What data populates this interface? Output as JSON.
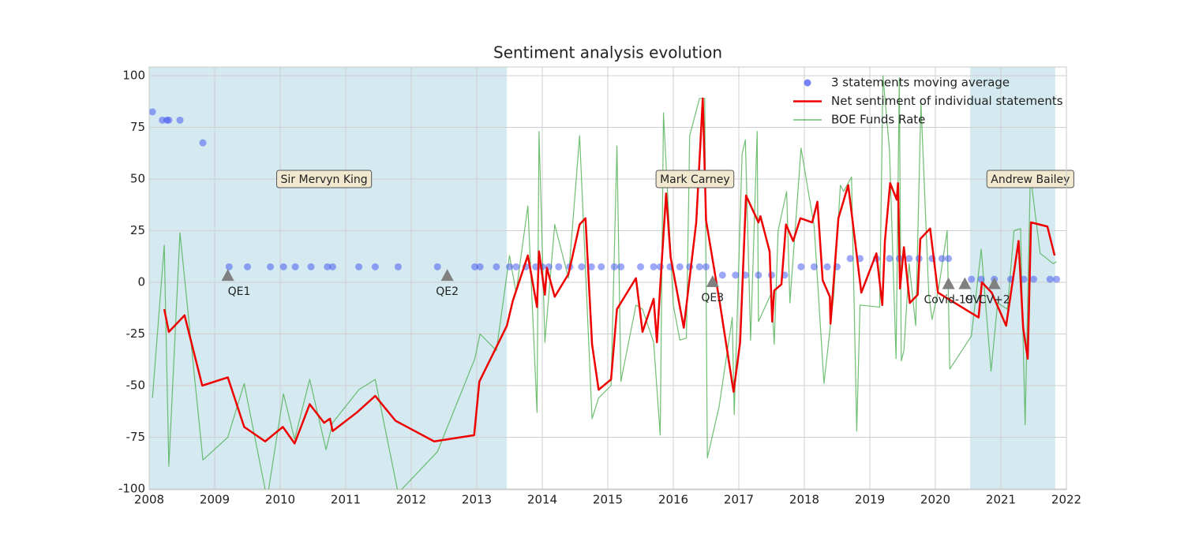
{
  "chart_data": {
    "type": "line",
    "title": "Sentiment analysis evolution",
    "xlim": [
      2008,
      2022
    ],
    "xticks": [
      2008,
      2009,
      2010,
      2011,
      2012,
      2013,
      2014,
      2015,
      2016,
      2017,
      2018,
      2019,
      2020,
      2021,
      2022
    ],
    "ylim": [
      -100,
      100
    ],
    "yticks": [
      -100,
      -75,
      -50,
      -25,
      0,
      25,
      50,
      75,
      100
    ],
    "grid": true,
    "legend": "upper right",
    "spans": [
      {
        "x": [
          2008,
          2013.46
        ],
        "color": "#d4eaf0"
      },
      {
        "x": [
          2020.53,
          2021.83
        ],
        "color": "#d4eaf0"
      }
    ],
    "annotations": [
      {
        "text": "Sir Mervyn King",
        "x": 2010.67,
        "y": 50
      },
      {
        "text": "Mark Carney",
        "x": 2016.33,
        "y": 50
      },
      {
        "text": "Andrew Bailey",
        "x": 2021.45,
        "y": 50
      }
    ],
    "events": {
      "color": "#808080",
      "labels": [
        "QE1",
        "QE2",
        "QE3",
        "Covid-19",
        "CV",
        "CV+2"
      ],
      "x": [
        2009.2,
        2012.55,
        2016.6,
        2020.2,
        2020.45,
        2020.9
      ],
      "values": [
        3,
        3,
        0,
        -1,
        -1,
        -1
      ]
    },
    "series": [
      {
        "name": "3 statements moving average",
        "type": "scatter",
        "color": "#3b50f0",
        "x": [
          2008.05,
          2008.2,
          2008.27,
          2008.3,
          2008.47,
          2008.82,
          2009.22,
          2009.5,
          2009.85,
          2010.05,
          2010.23,
          2010.47,
          2010.72,
          2010.8,
          2011.2,
          2011.45,
          2011.8,
          2012.4,
          2012.97,
          2013.05,
          2013.3,
          2013.5,
          2013.6,
          2013.75,
          2013.9,
          2014.0,
          2014.1,
          2014.25,
          2014.42,
          2014.6,
          2014.75,
          2014.9,
          2015.1,
          2015.2,
          2015.5,
          2015.7,
          2015.8,
          2015.95,
          2016.1,
          2016.25,
          2016.4,
          2016.5,
          2016.75,
          2016.95,
          2017.1,
          2017.3,
          2017.5,
          2017.7,
          2017.95,
          2018.15,
          2018.35,
          2018.5,
          2018.7,
          2018.85,
          2019.1,
          2019.3,
          2019.45,
          2019.6,
          2019.75,
          2019.95,
          2020.1,
          2020.2,
          2020.55,
          2020.7,
          2020.9,
          2021.15,
          2021.35,
          2021.5,
          2021.75,
          2021.85
        ],
        "values": [
          82.5,
          78.5,
          78.5,
          78.5,
          78.5,
          67.5,
          7.5,
          7.5,
          7.5,
          7.5,
          7.5,
          7.5,
          7.5,
          7.5,
          7.5,
          7.5,
          7.5,
          7.5,
          7.5,
          7.5,
          7.5,
          7.5,
          7.5,
          7.5,
          7.5,
          7.5,
          7.5,
          7.5,
          7.5,
          7.5,
          7.5,
          7.5,
          7.5,
          7.5,
          7.5,
          7.5,
          7.5,
          7.5,
          7.5,
          7.5,
          7.5,
          7.5,
          3.5,
          3.5,
          3.5,
          3.5,
          3.5,
          3.5,
          7.5,
          7.5,
          7.5,
          7.5,
          11.5,
          11.5,
          11.5,
          11.5,
          11.5,
          11.5,
          11.5,
          11.5,
          11.5,
          11.5,
          1.5,
          1.5,
          1.5,
          1.5,
          1.5,
          1.5,
          1.5,
          1.5
        ]
      },
      {
        "name": "Net sentiment of individual statements",
        "type": "line",
        "color": "#ee0000",
        "x": [
          2008.23,
          2008.3,
          2008.54,
          2008.81,
          2009.2,
          2009.45,
          2009.77,
          2010.04,
          2010.22,
          2010.45,
          2010.67,
          2010.76,
          2010.8,
          2011.17,
          2011.45,
          2011.76,
          2012.35,
          2012.96,
          2013.04,
          2013.46,
          2013.55,
          2013.78,
          2013.92,
          2013.95,
          2014.04,
          2014.07,
          2014.19,
          2014.4,
          2014.57,
          2014.66,
          2014.76,
          2014.86,
          2015.05,
          2015.14,
          2015.43,
          2015.53,
          2015.7,
          2015.75,
          2015.8,
          2015.89,
          2015.96,
          2016.16,
          2016.35,
          2016.45,
          2016.5,
          2016.71,
          2016.92,
          2017.02,
          2017.11,
          2017.3,
          2017.33,
          2017.47,
          2017.51,
          2017.54,
          2017.65,
          2017.72,
          2017.83,
          2017.94,
          2018.12,
          2018.2,
          2018.28,
          2018.39,
          2018.4,
          2018.52,
          2018.67,
          2018.87,
          2019.1,
          2019.19,
          2019.23,
          2019.31,
          2019.41,
          2019.43,
          2019.46,
          2019.52,
          2019.61,
          2019.73,
          2019.77,
          2019.92,
          2020.04,
          2020.66,
          2020.71,
          2020.86,
          2021.08,
          2021.27,
          2021.34,
          2021.41,
          2021.46,
          2021.71,
          2021.82
        ],
        "values": [
          -13,
          -24,
          -16,
          -50,
          -46,
          -70,
          -77,
          -70,
          -78,
          -59,
          -68,
          -66,
          -72,
          -63,
          -55,
          -67,
          -77,
          -74,
          -48,
          -21,
          -9,
          13,
          -12,
          15,
          -6,
          7,
          -7,
          4,
          28,
          31,
          -30,
          -52,
          -47,
          -13,
          2,
          -24,
          -8,
          -29,
          -2,
          43,
          12,
          -22,
          29,
          89,
          30,
          -10,
          -53,
          -29,
          42,
          29,
          32,
          15,
          -19,
          -4,
          -1,
          28,
          20,
          31,
          29,
          39,
          1,
          -7,
          -20,
          31,
          47,
          -5,
          14,
          -11,
          20,
          48,
          40,
          48,
          -3,
          17,
          -10,
          -6,
          21,
          26,
          -5,
          -17,
          0,
          -5,
          -21,
          20,
          -22,
          -37,
          29,
          27,
          13
        ]
      },
      {
        "name": "BOE Funds Rate",
        "type": "line",
        "color": "#4caf50",
        "x": [
          2008.05,
          2008.23,
          2008.3,
          2008.47,
          2008.82,
          2009.2,
          2009.45,
          2009.8,
          2010.05,
          2010.22,
          2010.45,
          2010.7,
          2010.8,
          2011.2,
          2011.45,
          2011.8,
          2012.4,
          2012.97,
          2013.05,
          2013.3,
          2013.5,
          2013.6,
          2013.78,
          2013.92,
          2013.95,
          2014.04,
          2014.19,
          2014.4,
          2014.57,
          2014.76,
          2014.86,
          2015.05,
          2015.14,
          2015.2,
          2015.43,
          2015.53,
          2015.7,
          2015.8,
          2015.85,
          2016.0,
          2016.1,
          2016.2,
          2016.25,
          2016.4,
          2016.48,
          2016.52,
          2016.7,
          2016.9,
          2016.93,
          2017.05,
          2017.1,
          2017.18,
          2017.28,
          2017.3,
          2017.5,
          2017.54,
          2017.6,
          2017.73,
          2017.78,
          2017.95,
          2018.15,
          2018.3,
          2018.45,
          2018.55,
          2018.6,
          2018.72,
          2018.8,
          2018.85,
          2019.15,
          2019.2,
          2019.3,
          2019.4,
          2019.45,
          2019.48,
          2019.52,
          2019.6,
          2019.7,
          2019.78,
          2019.9,
          2019.95,
          2020.05,
          2020.18,
          2020.22,
          2020.55,
          2020.7,
          2020.85,
          2020.95,
          2021.1,
          2021.2,
          2021.3,
          2021.37,
          2021.45,
          2021.6,
          2021.8,
          2021.85
        ],
        "values": [
          -56,
          18,
          -89,
          24,
          -86,
          -75,
          -49,
          -105,
          -54,
          -76,
          -47,
          -81,
          -68,
          -52,
          -47,
          -102,
          -82,
          -37,
          -25,
          -33,
          13,
          -5,
          37,
          -63,
          73,
          -29,
          28,
          2,
          71,
          -66,
          -56,
          -50,
          66,
          -48,
          -11,
          -13,
          -29,
          -74,
          82,
          -11,
          -28,
          -27,
          71,
          89,
          89,
          -85,
          -60,
          -17,
          -64,
          62,
          69,
          -28,
          73,
          -19,
          -5,
          -30,
          25,
          44,
          -10,
          65,
          27,
          -49,
          -6,
          47,
          44,
          51,
          -72,
          -11,
          -12,
          100,
          64,
          -37,
          99,
          -38,
          -33,
          9,
          -21,
          87,
          -6,
          -18,
          -3,
          25,
          -42,
          -26,
          16,
          -43,
          -10,
          -13,
          25,
          26,
          -69,
          52,
          14,
          9,
          10
        ]
      }
    ]
  }
}
